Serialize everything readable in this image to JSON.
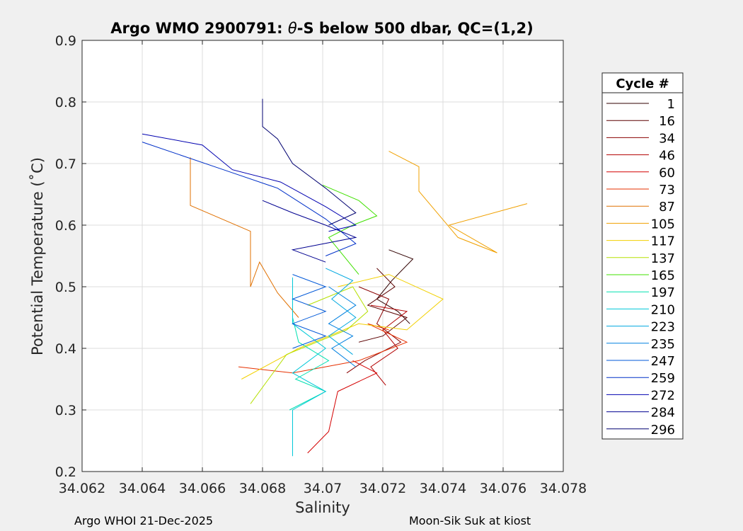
{
  "chart_data": {
    "type": "line",
    "title_prefix": "Argo WMO 2900791: ",
    "title_theta": "θ",
    "title_suffix": "-S below 500 dbar,  QC=(1,2)",
    "xlabel": "Salinity",
    "ylabel": "Potential Temperature (˚C)",
    "xlim": [
      34.062,
      34.078
    ],
    "ylim": [
      0.2,
      0.9
    ],
    "xticks": [
      34.062,
      34.064,
      34.066,
      34.068,
      34.07,
      34.072,
      34.074,
      34.076,
      34.078
    ],
    "xtick_labels": [
      "34.062",
      "34.064",
      "34.066",
      "34.068",
      "34.07",
      "34.072",
      "34.074",
      "34.076",
      "34.078"
    ],
    "yticks": [
      0.2,
      0.3,
      0.4,
      0.5,
      0.6,
      0.7,
      0.8,
      0.9
    ],
    "ytick_labels": [
      "0.2",
      "0.3",
      "0.4",
      "0.5",
      "0.6",
      "0.7",
      "0.8",
      "0.9"
    ],
    "grid": true,
    "legend_title": "Cycle #",
    "legend_position": "outside-right",
    "series": [
      {
        "name": "1",
        "color": "#300000",
        "x": [
          34.0722,
          34.073,
          34.0723,
          34.0718,
          34.0725,
          34.0729
        ],
        "y": [
          0.56,
          0.545,
          0.51,
          0.48,
          0.46,
          0.44
        ]
      },
      {
        "name": "16",
        "color": "#5c0000",
        "x": [
          34.0718,
          34.0724,
          34.0715,
          34.0728,
          34.072,
          34.0712
        ],
        "y": [
          0.53,
          0.5,
          0.47,
          0.45,
          0.42,
          0.41
        ]
      },
      {
        "name": "34",
        "color": "#8a0000",
        "x": [
          34.0712,
          34.0722,
          34.0718,
          34.0726,
          34.0714,
          34.0708
        ],
        "y": [
          0.5,
          0.48,
          0.44,
          0.41,
          0.38,
          0.36
        ]
      },
      {
        "name": "46",
        "color": "#b30000",
        "x": [
          34.0716,
          34.0728,
          34.072,
          34.0725,
          34.0716,
          34.0721
        ],
        "y": [
          0.47,
          0.46,
          0.43,
          0.4,
          0.37,
          0.34
        ]
      },
      {
        "name": "60",
        "color": "#d40000",
        "x": [
          34.0695,
          34.07,
          34.0702,
          34.0705,
          34.0718,
          34.071
        ],
        "y": [
          0.23,
          0.255,
          0.265,
          0.33,
          0.36,
          0.38
        ]
      },
      {
        "name": "73",
        "color": "#e63000",
        "x": [
          34.0672,
          34.069,
          34.0712,
          34.0728,
          34.0715,
          34.0722
        ],
        "y": [
          0.37,
          0.36,
          0.38,
          0.41,
          0.44,
          0.43
        ]
      },
      {
        "name": "87",
        "color": "#e07000",
        "x": [
          34.0656,
          34.0656,
          34.0676,
          34.0676,
          34.0679,
          34.0685,
          34.0692
        ],
        "y": [
          0.71,
          0.632,
          0.59,
          0.5,
          0.54,
          0.49,
          0.45
        ]
      },
      {
        "name": "105",
        "color": "#f0a000",
        "x": [
          34.0722,
          34.0732,
          34.0732,
          34.0745,
          34.0758,
          34.0742,
          34.0768
        ],
        "y": [
          0.72,
          0.695,
          0.655,
          0.58,
          0.555,
          0.6,
          0.635
        ]
      },
      {
        "name": "117",
        "color": "#f2d000",
        "x": [
          34.0673,
          34.0692,
          34.0712,
          34.0728,
          34.074,
          34.0722,
          34.0705
        ],
        "y": [
          0.35,
          0.4,
          0.44,
          0.43,
          0.48,
          0.52,
          0.5
        ]
      },
      {
        "name": "137",
        "color": "#b5e000",
        "x": [
          34.0676,
          34.0688,
          34.0708,
          34.0715,
          34.071,
          34.0695
        ],
        "y": [
          0.31,
          0.39,
          0.43,
          0.46,
          0.5,
          0.47
        ]
      },
      {
        "name": "165",
        "color": "#40e000",
        "x": [
          34.07,
          34.0712,
          34.0718,
          34.071,
          34.0702,
          34.0712
        ],
        "y": [
          0.665,
          0.64,
          0.615,
          0.6,
          0.58,
          0.52
        ]
      },
      {
        "name": "197",
        "color": "#00e0b0",
        "x": [
          34.069,
          34.0692,
          34.0702,
          34.0691,
          34.0701,
          34.0689
        ],
        "y": [
          0.45,
          0.41,
          0.38,
          0.35,
          0.33,
          0.3
        ]
      },
      {
        "name": "210",
        "color": "#00c8d8",
        "x": [
          34.069,
          34.069,
          34.0701,
          34.069,
          34.0701,
          34.069,
          34.069
        ],
        "y": [
          0.515,
          0.44,
          0.4,
          0.36,
          0.33,
          0.3,
          0.225
        ]
      },
      {
        "name": "223",
        "color": "#00a8e0",
        "x": [
          34.0701,
          34.071,
          34.0703,
          34.0711,
          34.0702,
          34.071
        ],
        "y": [
          0.53,
          0.51,
          0.48,
          0.45,
          0.42,
          0.39
        ]
      },
      {
        "name": "235",
        "color": "#0080e0",
        "x": [
          34.0702,
          34.0711,
          34.0702,
          34.071,
          34.0703,
          34.0711
        ],
        "y": [
          0.5,
          0.47,
          0.44,
          0.42,
          0.4,
          0.37
        ]
      },
      {
        "name": "247",
        "color": "#0058d8",
        "x": [
          34.069,
          34.0701,
          34.069,
          34.0701,
          34.069,
          34.0701,
          34.069
        ],
        "y": [
          0.52,
          0.5,
          0.48,
          0.46,
          0.44,
          0.42,
          0.4
        ]
      },
      {
        "name": "259",
        "color": "#0030c8",
        "x": [
          34.064,
          34.0667,
          34.0685,
          34.0701,
          34.0711,
          34.0701
        ],
        "y": [
          0.735,
          0.69,
          0.66,
          0.61,
          0.57,
          0.55
        ]
      },
      {
        "name": "272",
        "color": "#0000b0",
        "x": [
          34.064,
          34.066,
          34.067,
          34.0686,
          34.0701,
          34.0711,
          34.0702
        ],
        "y": [
          0.748,
          0.73,
          0.69,
          0.67,
          0.63,
          0.6,
          0.59
        ]
      },
      {
        "name": "284",
        "color": "#000090",
        "x": [
          34.068,
          34.069,
          34.0701,
          34.0711,
          34.069,
          34.0701
        ],
        "y": [
          0.64,
          0.62,
          0.6,
          0.58,
          0.56,
          0.54
        ]
      },
      {
        "name": "296",
        "color": "#000070",
        "x": [
          34.068,
          34.068,
          34.0685,
          34.069,
          34.0701,
          34.0711,
          34.0702
        ],
        "y": [
          0.805,
          0.76,
          0.74,
          0.7,
          0.66,
          0.62,
          0.6
        ]
      }
    ]
  },
  "footer": {
    "left": "Argo WHOI 21-Dec-2025",
    "right": "Moon-Sik Suk at kiost"
  }
}
